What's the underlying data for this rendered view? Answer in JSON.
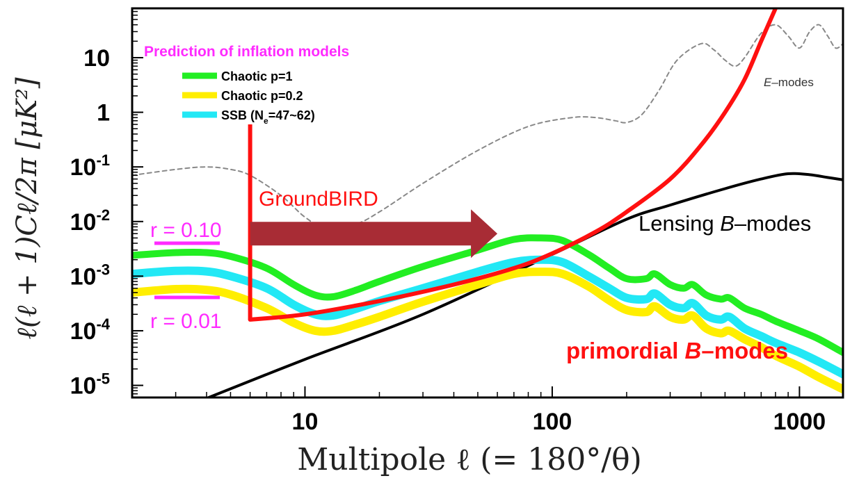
{
  "chart_data": {
    "type": "line",
    "x_scale": "log",
    "y_scale": "log",
    "xlim": [
      2,
      1500
    ],
    "ylim": [
      6e-06,
      80
    ],
    "xlabel": "Multipole ℓ  (= 180°/θ)",
    "ylabel": "ℓ(ℓ + 1)Cℓ/2π [μK²]",
    "x_ticks": [
      {
        "value": 10,
        "label": "10"
      },
      {
        "value": 100,
        "label": "100"
      },
      {
        "value": 1000,
        "label": "1000"
      }
    ],
    "y_ticks": [
      {
        "value": 10,
        "base": "10",
        "exp": ""
      },
      {
        "value": 1,
        "base": "1",
        "exp": ""
      },
      {
        "value": 0.1,
        "base": "10",
        "exp": "-1"
      },
      {
        "value": 0.01,
        "base": "10",
        "exp": "-2"
      },
      {
        "value": 0.001,
        "base": "10",
        "exp": "-3"
      },
      {
        "value": 0.0001,
        "base": "10",
        "exp": "-4"
      },
      {
        "value": 1e-05,
        "base": "10",
        "exp": "-5"
      }
    ],
    "legend": {
      "title": "Prediction of inflation models",
      "title_color": "#ff2bff",
      "position": "top-left",
      "entries": [
        {
          "label": "Chaotic p=1",
          "color": "#22ee22"
        },
        {
          "label": "Chaotic p=0.2",
          "color": "#ffee00"
        },
        {
          "label": "SSB (N",
          "sub": "e",
          "tail": "=47~62)",
          "color": "#22e8f5"
        }
      ]
    },
    "series": [
      {
        "id": "emodes",
        "color": "#888888",
        "dashed": true,
        "points": [
          [
            2,
            0.07
          ],
          [
            3,
            0.09
          ],
          [
            4,
            0.1
          ],
          [
            5,
            0.09
          ],
          [
            6,
            0.07
          ],
          [
            8,
            0.03
          ],
          [
            10,
            0.012
          ],
          [
            12,
            0.008
          ],
          [
            16,
            0.009
          ],
          [
            20,
            0.015
          ],
          [
            30,
            0.05
          ],
          [
            50,
            0.2
          ],
          [
            80,
            0.55
          ],
          [
            120,
            0.8
          ],
          [
            150,
            0.8
          ],
          [
            180,
            0.7
          ],
          [
            200,
            0.65
          ],
          [
            230,
            0.9
          ],
          [
            270,
            2.5
          ],
          [
            320,
            9
          ],
          [
            400,
            18
          ],
          [
            450,
            14
          ],
          [
            500,
            9
          ],
          [
            550,
            7
          ],
          [
            600,
            10
          ],
          [
            700,
            28
          ],
          [
            800,
            40
          ],
          [
            900,
            25
          ],
          [
            1000,
            15
          ],
          [
            1100,
            30
          ],
          [
            1200,
            40
          ],
          [
            1300,
            25
          ],
          [
            1400,
            15
          ],
          [
            1500,
            18
          ]
        ]
      },
      {
        "id": "lensing",
        "color": "#000000",
        "dashed": false,
        "points": [
          [
            4,
            5.8e-06
          ],
          [
            10,
            3e-05
          ],
          [
            30,
            0.0002
          ],
          [
            100,
            0.0025
          ],
          [
            200,
            0.011
          ],
          [
            300,
            0.02
          ],
          [
            500,
            0.04
          ],
          [
            700,
            0.06
          ],
          [
            900,
            0.075
          ],
          [
            1100,
            0.072
          ],
          [
            1300,
            0.064
          ],
          [
            1500,
            0.058
          ]
        ]
      },
      {
        "id": "ssb",
        "color": "#22e8f5",
        "dashed": false,
        "points": [
          [
            2,
            0.0011
          ],
          [
            3,
            0.00125
          ],
          [
            4,
            0.00122
          ],
          [
            5,
            0.001
          ],
          [
            7,
            0.0006
          ],
          [
            9,
            0.0003
          ],
          [
            11,
            0.0002
          ],
          [
            13,
            0.00019
          ],
          [
            16,
            0.00025
          ],
          [
            20,
            0.00035
          ],
          [
            30,
            0.0006
          ],
          [
            50,
            0.0012
          ],
          [
            70,
            0.0018
          ],
          [
            90,
            0.002
          ],
          [
            110,
            0.0018
          ],
          [
            140,
            0.001
          ],
          [
            170,
            0.0006
          ],
          [
            200,
            0.0004
          ],
          [
            240,
            0.00038
          ],
          [
            260,
            0.00048
          ],
          [
            300,
            0.0003
          ],
          [
            340,
            0.00026
          ],
          [
            370,
            0.00032
          ],
          [
            420,
            0.00019
          ],
          [
            480,
            0.00016
          ],
          [
            520,
            0.00018
          ],
          [
            600,
            0.00011
          ],
          [
            700,
            8e-05
          ],
          [
            800,
            6e-05
          ],
          [
            1000,
            4e-05
          ],
          [
            1200,
            2.7e-05
          ],
          [
            1500,
            1.6e-05
          ]
        ]
      },
      {
        "id": "chaotic_p02",
        "color": "#ffee00",
        "dashed": false,
        "points": [
          [
            2,
            0.0005
          ],
          [
            3,
            0.00058
          ],
          [
            4,
            0.00056
          ],
          [
            5,
            0.00046
          ],
          [
            7,
            0.00026
          ],
          [
            9,
            0.00014
          ],
          [
            11,
            0.0001
          ],
          [
            13,
            0.0001
          ],
          [
            16,
            0.00013
          ],
          [
            20,
            0.00018
          ],
          [
            30,
            0.00034
          ],
          [
            50,
            0.0007
          ],
          [
            70,
            0.0011
          ],
          [
            90,
            0.0012
          ],
          [
            110,
            0.0011
          ],
          [
            140,
            0.00065
          ],
          [
            170,
            0.00036
          ],
          [
            200,
            0.00024
          ],
          [
            240,
            0.00022
          ],
          [
            260,
            0.00028
          ],
          [
            300,
            0.00018
          ],
          [
            340,
            0.00016
          ],
          [
            370,
            0.00019
          ],
          [
            420,
            0.00011
          ],
          [
            480,
            9e-05
          ],
          [
            520,
            0.0001
          ],
          [
            600,
            7e-05
          ],
          [
            700,
            5e-05
          ],
          [
            800,
            3.5e-05
          ],
          [
            1000,
            2.2e-05
          ],
          [
            1200,
            1.4e-05
          ],
          [
            1500,
            8.5e-06
          ]
        ]
      },
      {
        "id": "chaotic_p1",
        "color": "#22ee22",
        "dashed": false,
        "points": [
          [
            2,
            0.0024
          ],
          [
            3,
            0.0027
          ],
          [
            4,
            0.0027
          ],
          [
            5,
            0.0023
          ],
          [
            7,
            0.0014
          ],
          [
            9,
            0.0007
          ],
          [
            11,
            0.00045
          ],
          [
            13,
            0.00042
          ],
          [
            16,
            0.00055
          ],
          [
            20,
            0.0008
          ],
          [
            30,
            0.0015
          ],
          [
            50,
            0.003
          ],
          [
            70,
            0.0047
          ],
          [
            90,
            0.005
          ],
          [
            110,
            0.0045
          ],
          [
            140,
            0.0025
          ],
          [
            170,
            0.0014
          ],
          [
            200,
            0.0009
          ],
          [
            240,
            0.0009
          ],
          [
            260,
            0.0011
          ],
          [
            300,
            0.0007
          ],
          [
            340,
            0.0006
          ],
          [
            370,
            0.0007
          ],
          [
            420,
            0.00045
          ],
          [
            480,
            0.00038
          ],
          [
            520,
            0.0004
          ],
          [
            600,
            0.00026
          ],
          [
            700,
            0.0002
          ],
          [
            800,
            0.00015
          ],
          [
            1000,
            0.0001
          ],
          [
            1200,
            7e-05
          ],
          [
            1500,
            4e-05
          ]
        ]
      },
      {
        "id": "groundbird",
        "color": "#ff1010",
        "dashed": false,
        "points": [
          [
            6,
            0.00016
          ],
          [
            10,
            0.0002
          ],
          [
            20,
            0.00035
          ],
          [
            40,
            0.0007
          ],
          [
            70,
            0.0014
          ],
          [
            100,
            0.0026
          ],
          [
            150,
            0.0065
          ],
          [
            200,
            0.015
          ],
          [
            300,
            0.06
          ],
          [
            400,
            0.25
          ],
          [
            500,
            1
          ],
          [
            600,
            4
          ],
          [
            700,
            20
          ],
          [
            800,
            80
          ]
        ]
      }
    ],
    "annotations": {
      "groundbird_label": "GroundBIRD",
      "groundbird_color": "#ff1010",
      "groundbird_start_x": 6,
      "groundbird_vertical_top": 0.6,
      "arrow_color": "#a82c35",
      "arrow_from_x": 6,
      "arrow_to_x": 60,
      "arrow_y": 0.006,
      "r_high": "r = 0.10",
      "r_low": "r = 0.01",
      "r_color": "#ff2bff",
      "emodes_label_italic": "E",
      "emodes_label_rest": "–modes",
      "lensing_label_pre": "Lensing ",
      "lensing_label_italic": "B",
      "lensing_label_rest": "–modes",
      "primordial_label_pre": "primordial ",
      "primordial_label_italic": "B",
      "primordial_label_rest": "–modes",
      "primordial_color": "#ff1010"
    }
  }
}
